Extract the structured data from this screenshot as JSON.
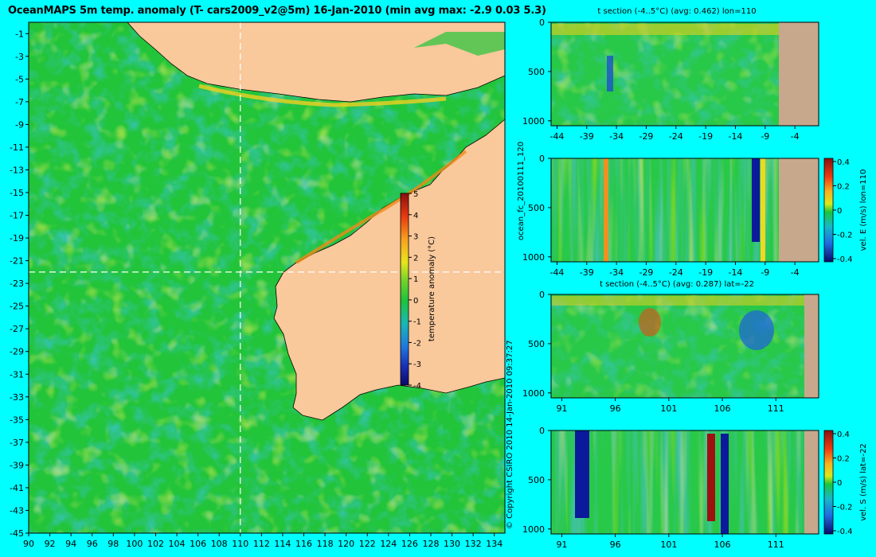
{
  "page": {
    "title": "OceanMAPS 5m temp. anomaly (T- cars2009_v2@5m) 16-Jan-2010 (min avg max: -2.9 0.03 5.3)",
    "copyright": "© Copyright CSIRO 2010   14-Jan-2010 09:37:27",
    "run_id": "ocean_fc_20100111_120"
  },
  "colors": {
    "background": "#00ffff",
    "land": "#f9c89b",
    "land_sections": "#c7a88c",
    "ocean_base": "#22c43a",
    "crosshair": "#ffffff"
  },
  "chart_data": [
    {
      "type": "heatmap",
      "title": "OceanMAPS 5m temp. anomaly (T- cars2009_v2@5m) 16-Jan-2010 (min avg max: -2.9 0.03 5.3)",
      "x_ticks": [
        90,
        92,
        94,
        96,
        98,
        100,
        102,
        104,
        106,
        108,
        110,
        112,
        114,
        116,
        118,
        120,
        122,
        124,
        126,
        128,
        130,
        132,
        134
      ],
      "y_ticks": [
        -1,
        -3,
        -5,
        -7,
        -9,
        -11,
        -13,
        -15,
        -17,
        -19,
        -21,
        -23,
        -25,
        -27,
        -29,
        -31,
        -33,
        -35,
        -37,
        -39,
        -41,
        -43,
        -45
      ],
      "xlim": [
        90,
        135
      ],
      "ylim": [
        -45,
        0
      ],
      "crosshair": {
        "lon": 110,
        "lat": -22
      },
      "colorbar": {
        "label": "temperature anomaly (°C)",
        "ticks": [
          5,
          4,
          3,
          2,
          1,
          0,
          -1,
          -2,
          -3,
          -4
        ],
        "range": [
          -4,
          5
        ]
      },
      "stats": {
        "min": -2.9,
        "avg": 0.03,
        "max": 5.3
      }
    },
    {
      "type": "heatmap",
      "title": "t section (-4..5°C) (avg: 0.462) lon=110",
      "x_ticks": [
        "-44",
        "-39",
        "-34",
        "-29",
        "-24",
        "-19",
        "-14",
        "-9",
        "-4"
      ],
      "y_ticks": [
        "0",
        "500",
        "1000"
      ],
      "xlim": [
        -45,
        0
      ],
      "ylim": [
        1050,
        0
      ]
    },
    {
      "type": "heatmap",
      "title": "",
      "x_ticks": [
        "-44",
        "-39",
        "-34",
        "-29",
        "-24",
        "-19",
        "-14",
        "-9",
        "-4"
      ],
      "y_ticks": [
        "0",
        "500",
        "1000"
      ],
      "xlim": [
        -45,
        0
      ],
      "ylim": [
        1050,
        0
      ],
      "colorbar": {
        "label": "vel. E (m/s) lon=110",
        "ticks": [
          "0.4",
          "0.2",
          "0",
          "-0.2",
          "-0.4"
        ]
      }
    },
    {
      "type": "heatmap",
      "title": "t section (-4..5°C) (avg: 0.287) lat=-22",
      "x_ticks": [
        "91",
        "96",
        "101",
        "106",
        "111"
      ],
      "y_ticks": [
        "0",
        "500",
        "1000"
      ],
      "xlim": [
        90,
        115
      ],
      "ylim": [
        1050,
        0
      ]
    },
    {
      "type": "heatmap",
      "title": "",
      "x_ticks": [
        "91",
        "96",
        "101",
        "106",
        "111"
      ],
      "y_ticks": [
        "0",
        "500",
        "1000"
      ],
      "xlim": [
        90,
        115
      ],
      "ylim": [
        1050,
        0
      ],
      "colorbar": {
        "label": "vel. S (m/s) lat=-22",
        "ticks": [
          "0.4",
          "0.2",
          "0",
          "-0.2",
          "-0.4"
        ]
      }
    }
  ]
}
